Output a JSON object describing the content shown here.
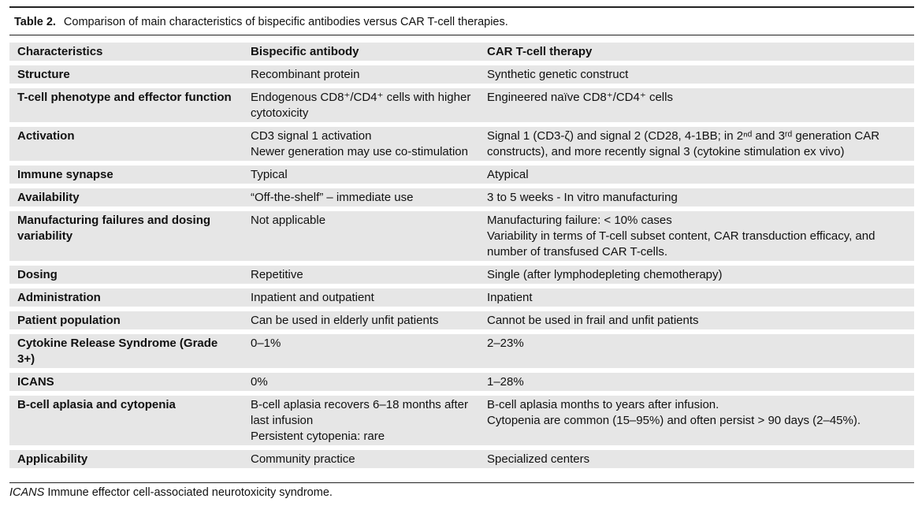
{
  "caption": {
    "label": "Table 2.",
    "text": "Comparison of main characteristics of bispecific antibodies versus CAR T-cell therapies."
  },
  "table": {
    "header": [
      "Characteristics",
      "Bispecific antibody",
      "CAR T-cell therapy"
    ],
    "rows": [
      [
        "Structure",
        "Recombinant protein",
        "Synthetic genetic construct"
      ],
      [
        "T-cell phenotype and effector function",
        "Endogenous CD8⁺/CD4⁺ cells with higher cytotoxicity",
        "Engineered naïve CD8⁺/CD4⁺ cells"
      ],
      [
        "Activation",
        "CD3 signal 1 activation\nNewer generation may use co-stimulation",
        "Signal 1 (CD3-ζ) and signal 2 (CD28, 4-1BB; in 2ⁿᵈ and 3ʳᵈ generation CAR constructs), and more recently signal 3 (cytokine stimulation ex vivo)"
      ],
      [
        "Immune synapse",
        "Typical",
        "Atypical"
      ],
      [
        "Availability",
        "“Off-the-shelf” – immediate use",
        "3 to 5 weeks - In vitro manufacturing"
      ],
      [
        "Manufacturing failures and dosing variability",
        "Not applicable",
        "Manufacturing failure: < 10% cases\nVariability in terms of T-cell subset content, CAR transduction efficacy, and number of transfused CAR T-cells."
      ],
      [
        "Dosing",
        "Repetitive",
        "Single (after lymphodepleting chemotherapy)"
      ],
      [
        "Administration",
        "Inpatient and outpatient",
        "Inpatient"
      ],
      [
        "Patient population",
        "Can be used in elderly unfit patients",
        "Cannot be used in frail and unfit patients"
      ],
      [
        "Cytokine Release Syndrome (Grade 3+)",
        "0–1%",
        "2–23%"
      ],
      [
        "ICANS",
        "0%",
        "1–28%"
      ],
      [
        "B-cell aplasia and cytopenia",
        "B-cell aplasia recovers 6–18 months after last infusion\nPersistent cytopenia: rare",
        "B-cell aplasia months to years after infusion.\nCytopenia are common (15–95%) and often persist > 90 days (2–45%)."
      ],
      [
        "Applicability",
        "Community practice",
        "Specialized centers"
      ]
    ]
  },
  "footnote": {
    "term": "ICANS",
    "text": "Immune effector cell-associated neurotoxicity syndrome."
  }
}
